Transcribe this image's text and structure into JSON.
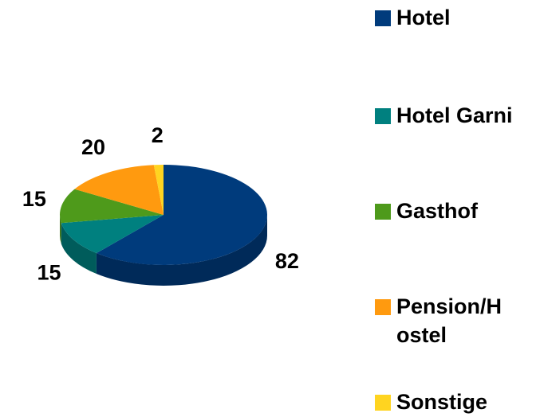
{
  "chart_data": {
    "type": "pie",
    "categories": [
      "Hotel",
      "Hotel Garni",
      "Gasthof",
      "Pension/Hostel",
      "Sonstige"
    ],
    "values": [
      82,
      15,
      15,
      20,
      2
    ],
    "colors": [
      "#003b7c",
      "#00807f",
      "#4e9a1b",
      "#ff9a0f",
      "#ffd420"
    ],
    "legend": "right"
  }
}
